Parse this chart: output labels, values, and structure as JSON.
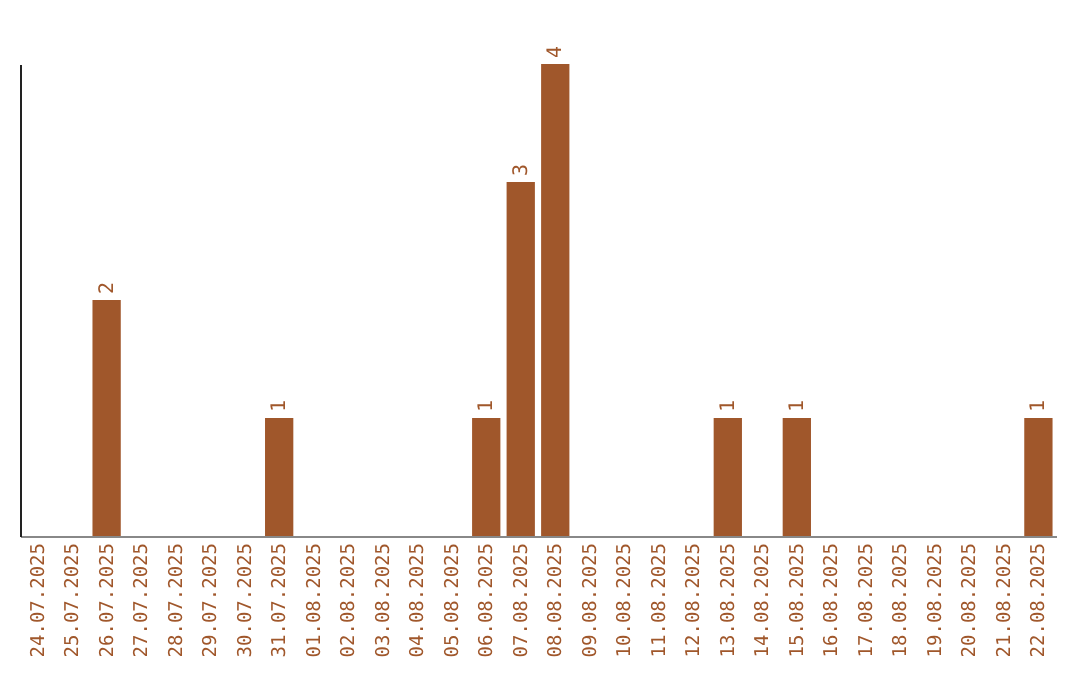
{
  "chart_data": {
    "type": "bar",
    "categories": [
      "24.07.2025",
      "25.07.2025",
      "26.07.2025",
      "27.07.2025",
      "28.07.2025",
      "29.07.2025",
      "30.07.2025",
      "31.07.2025",
      "01.08.2025",
      "02.08.2025",
      "03.08.2025",
      "04.08.2025",
      "05.08.2025",
      "06.08.2025",
      "07.08.2025",
      "08.08.2025",
      "09.08.2025",
      "10.08.2025",
      "11.08.2025",
      "12.08.2025",
      "13.08.2025",
      "14.08.2025",
      "15.08.2025",
      "16.08.2025",
      "17.08.2025",
      "18.08.2025",
      "19.08.2025",
      "20.08.2025",
      "21.08.2025",
      "22.08.2025"
    ],
    "values": [
      0,
      0,
      2,
      0,
      0,
      0,
      0,
      1,
      0,
      0,
      0,
      0,
      0,
      1,
      3,
      4,
      0,
      0,
      0,
      0,
      1,
      0,
      1,
      0,
      0,
      0,
      0,
      0,
      0,
      1
    ],
    "value_labels": [
      null,
      null,
      "2",
      null,
      null,
      null,
      null,
      "1",
      null,
      null,
      null,
      null,
      null,
      "1",
      "3",
      "4",
      null,
      null,
      null,
      null,
      "1",
      null,
      "1",
      null,
      null,
      null,
      null,
      null,
      null,
      "1"
    ],
    "color": "#a0572b",
    "grid": false
  }
}
